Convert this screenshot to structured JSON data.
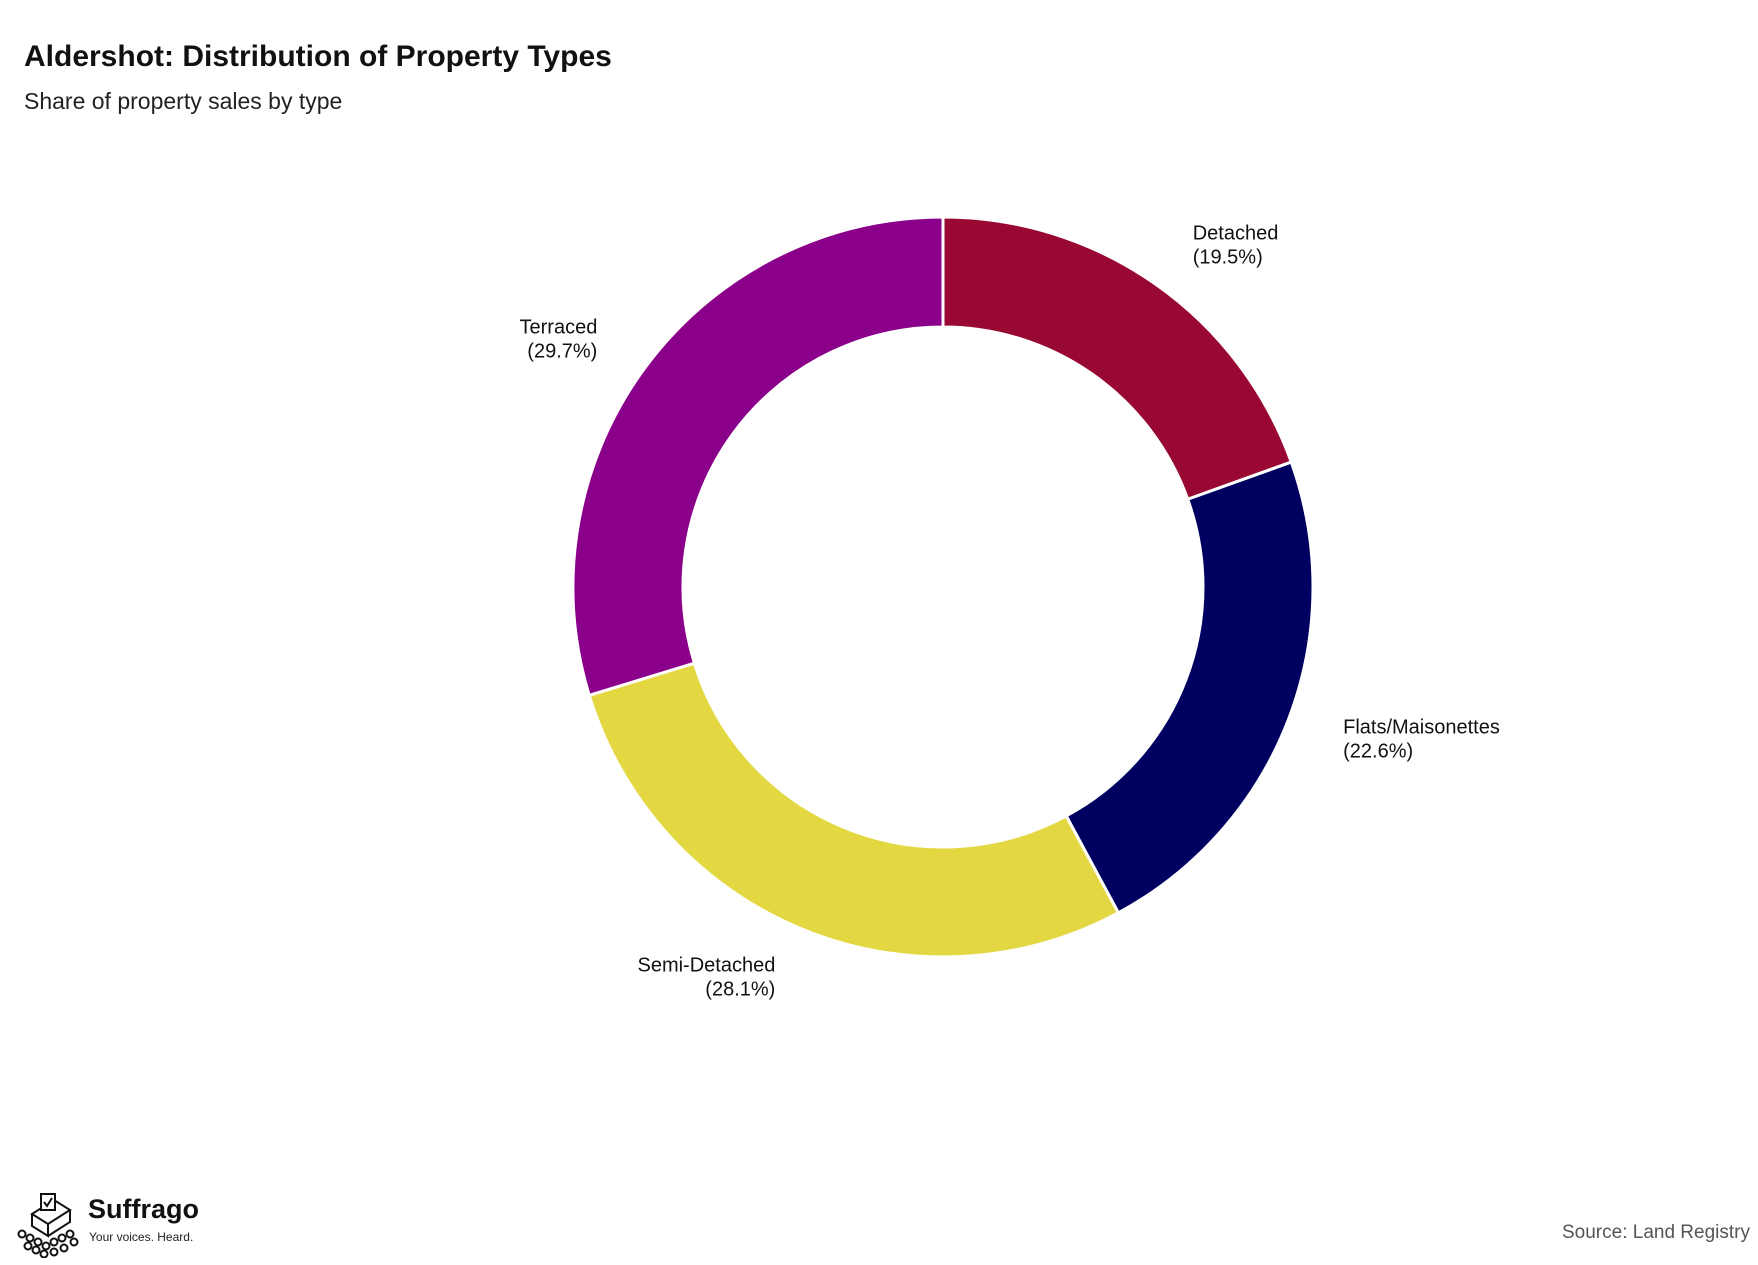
{
  "header": {
    "title": "Aldershot: Distribution of Property Types",
    "subtitle": "Share of property sales by type"
  },
  "chart_data": {
    "type": "pie",
    "variant": "donut",
    "title": "Aldershot: Distribution of Property Types",
    "subtitle": "Share of property sales by type",
    "legend": "none (labels placed beside slices)",
    "slices": [
      {
        "label": "Detached",
        "value": 19.5,
        "value_label": "(19.5%)",
        "color": "#990832"
      },
      {
        "label": "Flats/Maisonettes",
        "value": 22.6,
        "value_label": "(22.6%)",
        "color": "#000060"
      },
      {
        "label": "Semi-Detached",
        "value": 28.1,
        "value_label": "(28.1%)",
        "color": "#e3d842"
      },
      {
        "label": "Terraced",
        "value": 29.7,
        "value_label": "(29.7%)",
        "color": "#8b008b"
      }
    ]
  },
  "footer": {
    "logo_icon": "ballot-box-icon",
    "brand_name": "Suffrago",
    "tagline": "Your voices. Heard.",
    "source": "Source: Land Registry"
  }
}
